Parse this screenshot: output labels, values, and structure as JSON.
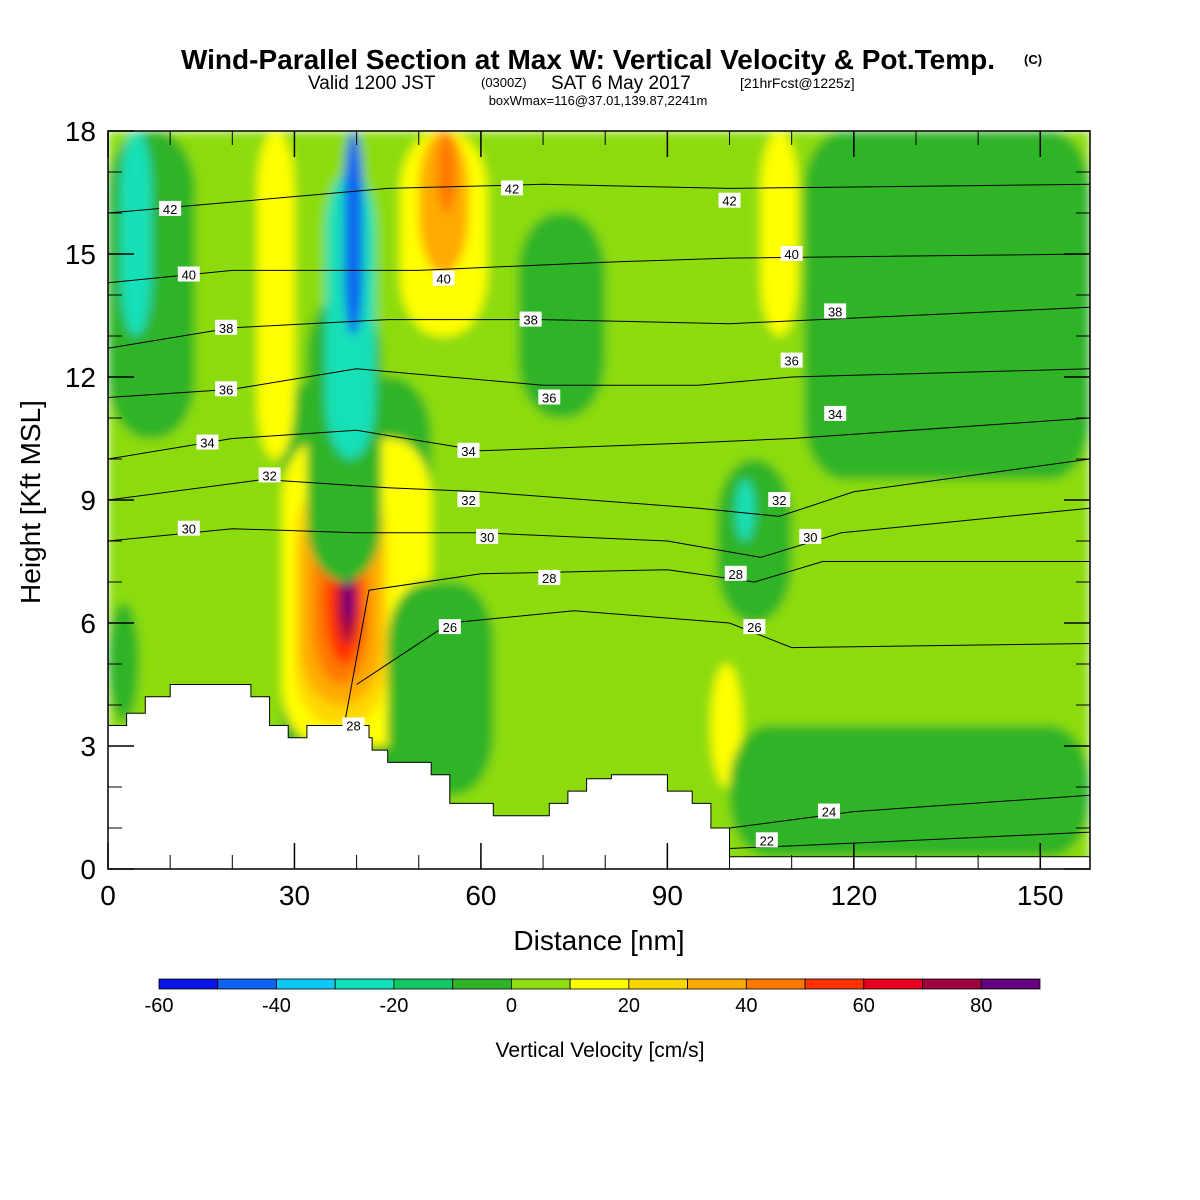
{
  "title": {
    "main": "Wind-Parallel Section at Max W: Vertical Velocity & Pot.Temp.",
    "main_mark": "(C)",
    "valid_a": "Valid 1200 JST",
    "valid_b": "(0300Z)",
    "valid_c": "SAT 6 May 2017",
    "valid_d": "[21hrFcst@1225z]",
    "box": "boxWmax=116@37.01,139.87,2241m"
  },
  "chart_data": {
    "type": "heatmap",
    "xlabel": "Distance [nm]",
    "ylabel": "Height [Kft MSL]",
    "xlim": [
      0,
      158
    ],
    "ylim": [
      0,
      18
    ],
    "x_ticks": [
      0,
      30,
      60,
      90,
      120,
      150
    ],
    "y_ticks": [
      0,
      3,
      6,
      9,
      12,
      15,
      18
    ],
    "x_minor_step": 10,
    "y_minor_step": 1,
    "colorbar": {
      "label": "Vertical Velocity [cm/s]",
      "levels": [
        -60,
        -50,
        -40,
        -30,
        -20,
        -10,
        0,
        10,
        20,
        30,
        40,
        50,
        60,
        70,
        80,
        90
      ],
      "tick_labels": [
        -60,
        -40,
        -20,
        0,
        20,
        40,
        60,
        80
      ],
      "colors": [
        "#0a14e6",
        "#0a64f0",
        "#10c8f5",
        "#12e0b8",
        "#10c864",
        "#2db428",
        "#8cdc10",
        "#ffff00",
        "#ffd700",
        "#ffaa00",
        "#ff7800",
        "#ff3200",
        "#e6001e",
        "#a0003c",
        "#64007f"
      ]
    },
    "terrain": [
      [
        0,
        3.5
      ],
      [
        3,
        3.5
      ],
      [
        3,
        3.8
      ],
      [
        6,
        3.8
      ],
      [
        6,
        4.2
      ],
      [
        10,
        4.2
      ],
      [
        10,
        4.5
      ],
      [
        23,
        4.5
      ],
      [
        23,
        4.2
      ],
      [
        26,
        4.2
      ],
      [
        26,
        3.5
      ],
      [
        29,
        3.5
      ],
      [
        29,
        3.2
      ],
      [
        32,
        3.2
      ],
      [
        32,
        3.5
      ],
      [
        42,
        3.5
      ],
      [
        42,
        3.2
      ],
      [
        42.5,
        3.2
      ],
      [
        42.5,
        2.9
      ],
      [
        45,
        2.9
      ],
      [
        45,
        2.6
      ],
      [
        52,
        2.6
      ],
      [
        52,
        2.3
      ],
      [
        55,
        2.3
      ],
      [
        55,
        1.6
      ],
      [
        62,
        1.6
      ],
      [
        62,
        1.3
      ],
      [
        71,
        1.3
      ],
      [
        71,
        1.6
      ],
      [
        74,
        1.6
      ],
      [
        74,
        1.9
      ],
      [
        77,
        1.9
      ],
      [
        77,
        2.2
      ],
      [
        81,
        2.2
      ],
      [
        81,
        2.3
      ],
      [
        90,
        2.3
      ],
      [
        90,
        1.9
      ],
      [
        94,
        1.9
      ],
      [
        94,
        1.6
      ],
      [
        97,
        1.6
      ],
      [
        97,
        1.0
      ],
      [
        100,
        1.0
      ],
      [
        100,
        0.3
      ],
      [
        158,
        0.3
      ]
    ],
    "velocity_cells": [
      {
        "x": [
          0,
          158
        ],
        "y": [
          0,
          18
        ],
        "w": 5
      },
      {
        "x": [
          0,
          14
        ],
        "y": [
          10.5,
          18
        ],
        "w": -5
      },
      {
        "x": [
          2,
          7
        ],
        "y": [
          13,
          18
        ],
        "w": -25
      },
      {
        "x": [
          0,
          5
        ],
        "y": [
          3.6,
          6.5
        ],
        "w": -5
      },
      {
        "x": [
          28,
          52
        ],
        "y": [
          0.5,
          12
        ],
        "w": -5
      },
      {
        "x": [
          28,
          52
        ],
        "y": [
          3,
          10.5
        ],
        "w": 15
      },
      {
        "x": [
          30,
          45
        ],
        "y": [
          3.5,
          9.5
        ],
        "w": 25
      },
      {
        "x": [
          31,
          44
        ],
        "y": [
          4,
          9
        ],
        "w": 35
      },
      {
        "x": [
          33,
          42
        ],
        "y": [
          4.5,
          8.5
        ],
        "w": 45
      },
      {
        "x": [
          35,
          41
        ],
        "y": [
          5,
          8
        ],
        "w": 55
      },
      {
        "x": [
          37,
          40
        ],
        "y": [
          5.5,
          7.5
        ],
        "w": 70
      },
      {
        "x": [
          38,
          39.5
        ],
        "y": [
          6,
          7.2
        ],
        "w": 85
      },
      {
        "x": [
          32,
          44
        ],
        "y": [
          7,
          14
        ],
        "w": -10
      },
      {
        "x": [
          35,
          43
        ],
        "y": [
          10,
          17
        ],
        "w": -25
      },
      {
        "x": [
          38,
          41
        ],
        "y": [
          13,
          18
        ],
        "w": -45
      },
      {
        "x": [
          24,
          30
        ],
        "y": [
          10,
          18
        ],
        "w": 15
      },
      {
        "x": [
          47,
          61
        ],
        "y": [
          13,
          18
        ],
        "w": 15
      },
      {
        "x": [
          50,
          58
        ],
        "y": [
          14.5,
          18
        ],
        "w": 30
      },
      {
        "x": [
          53,
          56
        ],
        "y": [
          16,
          18
        ],
        "w": 45
      },
      {
        "x": [
          66,
          80
        ],
        "y": [
          11,
          16
        ],
        "w": -5
      },
      {
        "x": [
          98,
          110
        ],
        "y": [
          6,
          10
        ],
        "w": -8
      },
      {
        "x": [
          101,
          104
        ],
        "y": [
          8,
          9.5
        ],
        "w": -25
      },
      {
        "x": [
          97,
          102
        ],
        "y": [
          2,
          5
        ],
        "w": 15
      },
      {
        "x": [
          105,
          111
        ],
        "y": [
          13,
          18
        ],
        "w": 15
      },
      {
        "x": [
          112,
          158
        ],
        "y": [
          9.5,
          18
        ],
        "w": -5
      },
      {
        "x": [
          100,
          158
        ],
        "y": [
          0.3,
          3.5
        ],
        "w": -5
      },
      {
        "x": [
          45,
          62
        ],
        "y": [
          1.8,
          7
        ],
        "w": -5
      }
    ],
    "theta_isentropes": [
      {
        "label": "22",
        "pts": [
          [
            100,
            0.5
          ],
          [
            130,
            0.7
          ],
          [
            158,
            0.9
          ]
        ]
      },
      {
        "label": "24",
        "pts": [
          [
            100,
            1.0
          ],
          [
            120,
            1.4
          ],
          [
            158,
            1.8
          ]
        ]
      },
      {
        "label": "26",
        "pts": [
          [
            40,
            4.5
          ],
          [
            55,
            6.0
          ],
          [
            75,
            6.3
          ],
          [
            100,
            6.0
          ],
          [
            110,
            5.4
          ],
          [
            158,
            5.5
          ]
        ]
      },
      {
        "label": "28",
        "pts": [
          [
            38,
            3.5
          ],
          [
            42,
            6.8
          ],
          [
            60,
            7.2
          ],
          [
            90,
            7.3
          ],
          [
            104,
            7.0
          ],
          [
            115,
            7.5
          ],
          [
            158,
            7.5
          ]
        ]
      },
      {
        "label": "30",
        "pts": [
          [
            0,
            8.0
          ],
          [
            20,
            8.3
          ],
          [
            40,
            8.2
          ],
          [
            60,
            8.2
          ],
          [
            90,
            8.0
          ],
          [
            105,
            7.6
          ],
          [
            118,
            8.2
          ],
          [
            158,
            8.8
          ]
        ]
      },
      {
        "label": "32",
        "pts": [
          [
            0,
            9.0
          ],
          [
            25,
            9.5
          ],
          [
            45,
            9.3
          ],
          [
            60,
            9.2
          ],
          [
            95,
            8.8
          ],
          [
            108,
            8.6
          ],
          [
            120,
            9.2
          ],
          [
            158,
            10.0
          ]
        ]
      },
      {
        "label": "34",
        "pts": [
          [
            0,
            10.0
          ],
          [
            20,
            10.5
          ],
          [
            40,
            10.7
          ],
          [
            60,
            10.2
          ],
          [
            95,
            10.4
          ],
          [
            110,
            10.5
          ],
          [
            158,
            11.0
          ]
        ]
      },
      {
        "label": "36",
        "pts": [
          [
            0,
            11.5
          ],
          [
            20,
            11.7
          ],
          [
            40,
            12.2
          ],
          [
            70,
            11.8
          ],
          [
            95,
            11.8
          ],
          [
            110,
            12.0
          ],
          [
            158,
            12.2
          ]
        ]
      },
      {
        "label": "38",
        "pts": [
          [
            0,
            12.7
          ],
          [
            20,
            13.2
          ],
          [
            45,
            13.4
          ],
          [
            70,
            13.4
          ],
          [
            100,
            13.3
          ],
          [
            158,
            13.7
          ]
        ]
      },
      {
        "label": "40",
        "pts": [
          [
            0,
            14.3
          ],
          [
            20,
            14.6
          ],
          [
            50,
            14.6
          ],
          [
            80,
            14.8
          ],
          [
            100,
            14.9
          ],
          [
            158,
            15.0
          ]
        ]
      },
      {
        "label": "42",
        "pts": [
          [
            0,
            16.0
          ],
          [
            15,
            16.2
          ],
          [
            45,
            16.6
          ],
          [
            70,
            16.7
          ],
          [
            100,
            16.6
          ],
          [
            158,
            16.7
          ]
        ]
      }
    ],
    "theta_labels": [
      {
        "text": "42",
        "x": 10,
        "y": 16.1
      },
      {
        "text": "42",
        "x": 65,
        "y": 16.6
      },
      {
        "text": "42",
        "x": 100,
        "y": 16.3
      },
      {
        "text": "40",
        "x": 13,
        "y": 14.5
      },
      {
        "text": "40",
        "x": 54,
        "y": 14.4
      },
      {
        "text": "40",
        "x": 110,
        "y": 15.0
      },
      {
        "text": "38",
        "x": 19,
        "y": 13.2
      },
      {
        "text": "38",
        "x": 68,
        "y": 13.4
      },
      {
        "text": "38",
        "x": 117,
        "y": 13.6
      },
      {
        "text": "36",
        "x": 19,
        "y": 11.7
      },
      {
        "text": "36",
        "x": 71,
        "y": 11.5
      },
      {
        "text": "36",
        "x": 110,
        "y": 12.4
      },
      {
        "text": "34",
        "x": 16,
        "y": 10.4
      },
      {
        "text": "34",
        "x": 58,
        "y": 10.2
      },
      {
        "text": "34",
        "x": 117,
        "y": 11.1
      },
      {
        "text": "32",
        "x": 26,
        "y": 9.6
      },
      {
        "text": "32",
        "x": 58,
        "y": 9.0
      },
      {
        "text": "32",
        "x": 108,
        "y": 9.0
      },
      {
        "text": "30",
        "x": 13,
        "y": 8.3
      },
      {
        "text": "30",
        "x": 61,
        "y": 8.1
      },
      {
        "text": "30",
        "x": 113,
        "y": 8.1
      },
      {
        "text": "28",
        "x": 71,
        "y": 7.1
      },
      {
        "text": "28",
        "x": 101,
        "y": 7.2
      },
      {
        "text": "28",
        "x": 39.5,
        "y": 3.5
      },
      {
        "text": "26",
        "x": 55,
        "y": 5.9
      },
      {
        "text": "26",
        "x": 104,
        "y": 5.9
      },
      {
        "text": "24",
        "x": 116,
        "y": 1.4
      },
      {
        "text": "22",
        "x": 106,
        "y": 0.7
      }
    ]
  }
}
